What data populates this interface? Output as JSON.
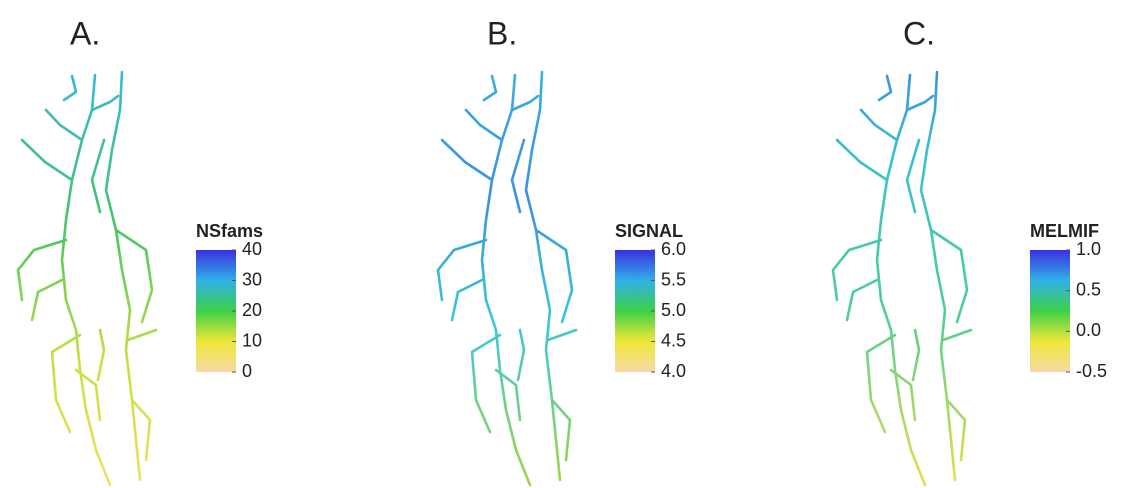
{
  "panels": [
    {
      "label": "A.",
      "colorbar": {
        "title": "NSfams",
        "lim": [
          0,
          40
        ],
        "ticks": [
          0,
          10,
          20,
          30,
          40
        ]
      }
    },
    {
      "label": "B.",
      "colorbar": {
        "title": "SIGNAL",
        "lim": [
          4,
          6
        ],
        "ticks": [
          {
            "value": 4,
            "label": "4.0"
          },
          4.5,
          {
            "value": 5,
            "label": "5.0"
          },
          5.5,
          {
            "value": 6,
            "label": "6.0"
          }
        ]
      }
    },
    {
      "label": "C.",
      "colorbar": {
        "title": "MELMIF",
        "lim": [
          -0.5,
          1
        ],
        "ticks": [
          -0.5,
          {
            "value": 0,
            "label": "0.0"
          },
          0.5,
          {
            "value": 1,
            "label": "1.0"
          }
        ]
      }
    }
  ]
}
